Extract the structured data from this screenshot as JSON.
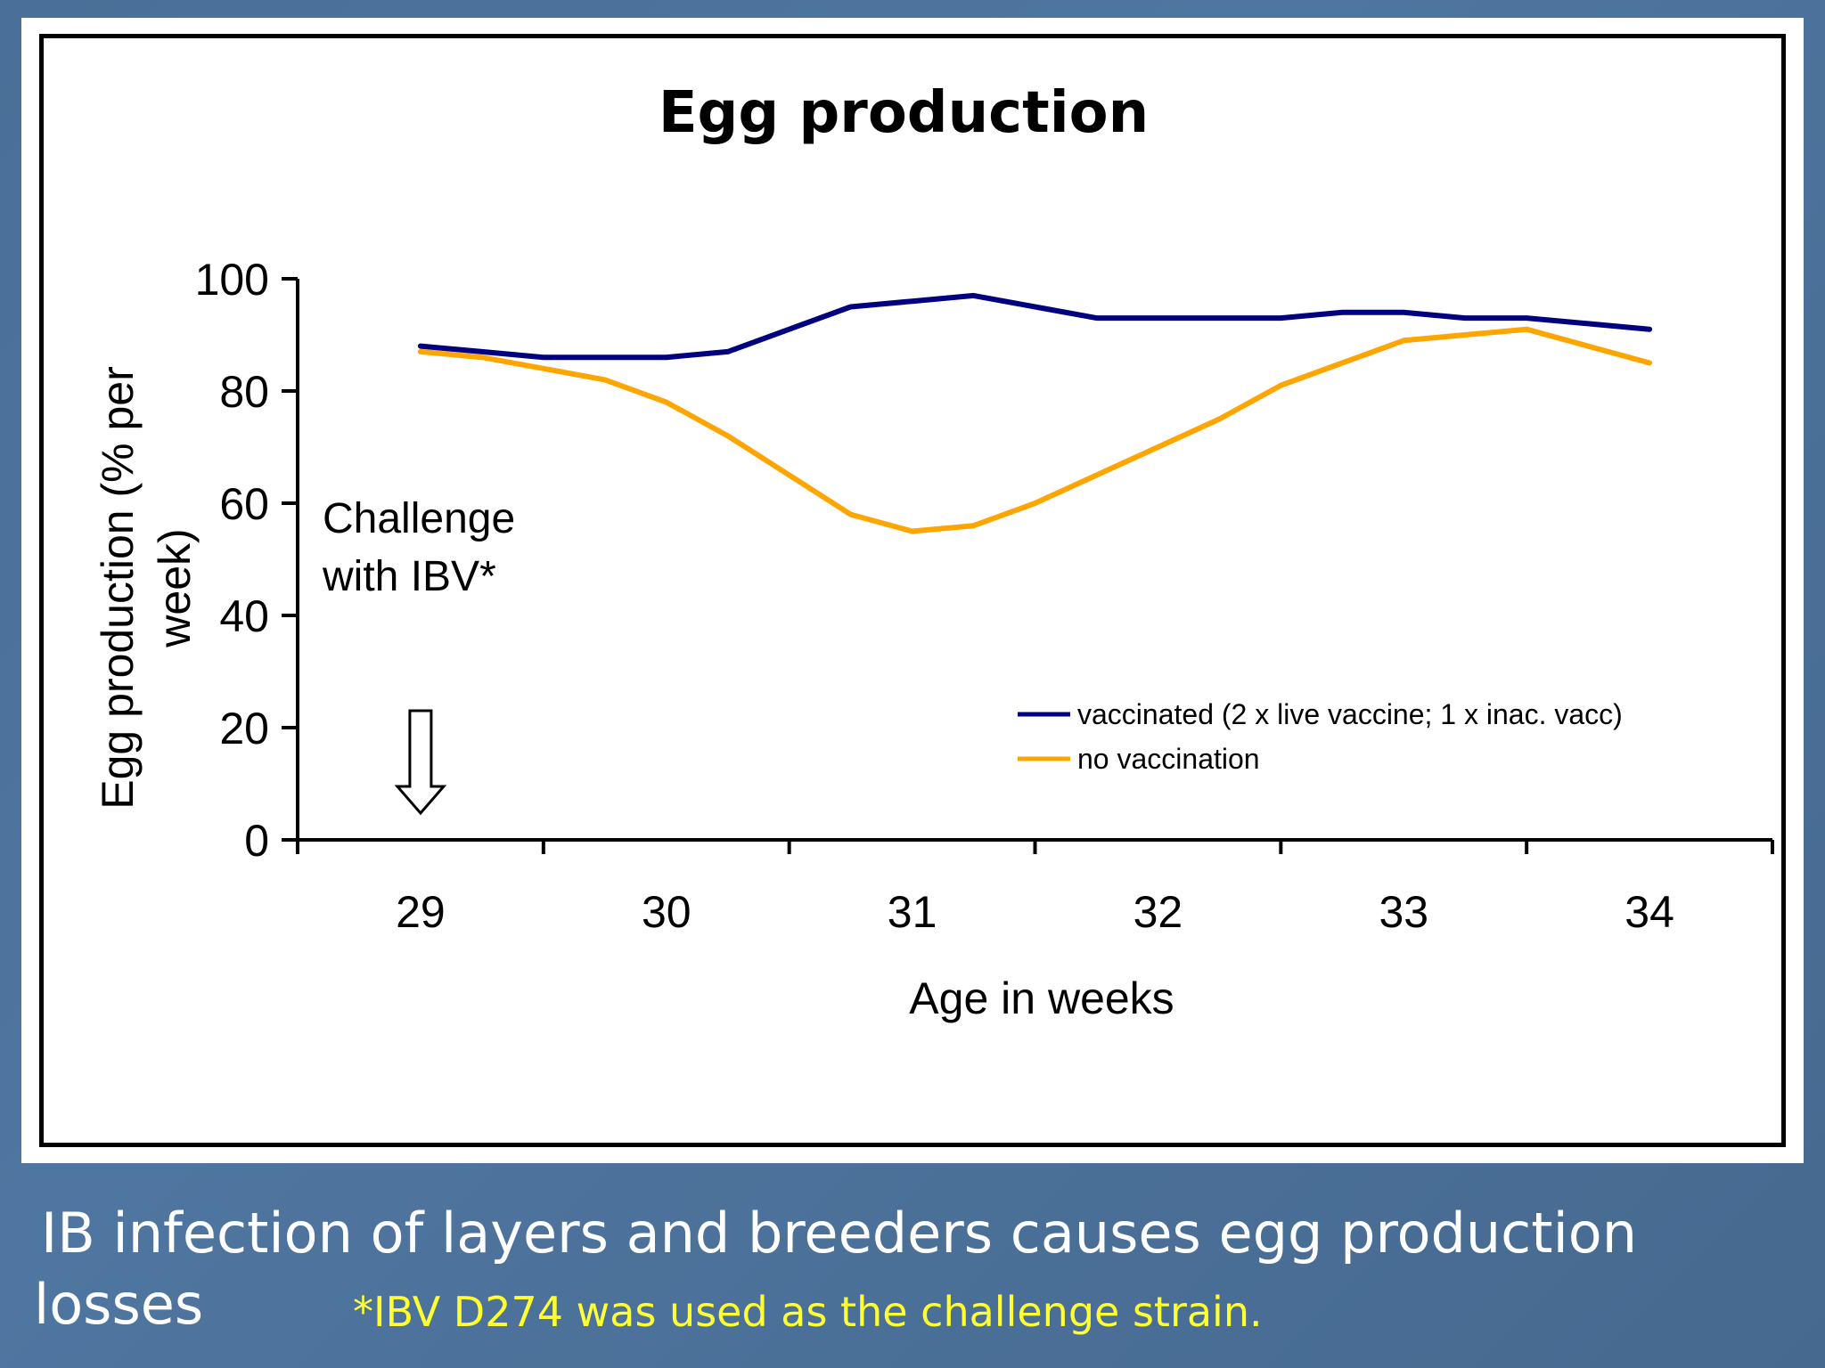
{
  "chart_data": {
    "type": "line",
    "title": "Egg production",
    "xlabel": "Age in weeks",
    "ylabel": "Egg production (% per week)",
    "ylabel_lines": [
      "Egg production (% per",
      "week)"
    ],
    "x_ticks": [
      "29",
      "30",
      "31",
      "32",
      "33",
      "34"
    ],
    "y_ticks": [
      "0",
      "20",
      "40",
      "60",
      "80",
      "100"
    ],
    "ylim": [
      0,
      100
    ],
    "xlim": [
      28.5,
      34.5
    ],
    "series": [
      {
        "name": "vaccinated (2 x live vaccine; 1 x inac. vacc)",
        "color": "#000080",
        "x": [
          29,
          29.25,
          29.5,
          29.75,
          30,
          30.25,
          30.5,
          30.75,
          31,
          31.25,
          31.5,
          31.75,
          32,
          32.25,
          32.5,
          32.75,
          33,
          33.25,
          33.5,
          33.75,
          34
        ],
        "values": [
          88,
          87,
          86,
          86,
          86,
          87,
          91,
          95,
          96,
          97,
          95,
          93,
          93,
          93,
          93,
          94,
          94,
          93,
          93,
          92,
          91
        ]
      },
      {
        "name": "no vaccination",
        "color": "#ffa500",
        "x": [
          29,
          29.25,
          29.5,
          29.75,
          30,
          30.25,
          30.5,
          30.75,
          31,
          31.25,
          31.5,
          31.75,
          32,
          32.25,
          32.5,
          32.75,
          33,
          33.25,
          33.5,
          33.75,
          34
        ],
        "values": [
          87,
          86,
          84,
          82,
          78,
          72,
          65,
          58,
          55,
          56,
          60,
          65,
          70,
          75,
          81,
          85,
          89,
          90,
          91,
          88,
          85
        ]
      }
    ],
    "annotation_lines": [
      "Challenge",
      "with IBV*"
    ],
    "annotation_x": 29
  },
  "caption": {
    "line1": "IB infection of layers and breeders causes egg production",
    "line2": "losses"
  },
  "footnote": "*IBV D274 was used as the challenge strain."
}
